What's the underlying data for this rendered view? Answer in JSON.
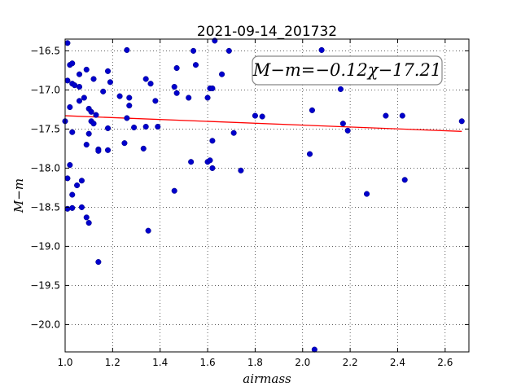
{
  "chart_data": {
    "type": "scatter",
    "title": "2021-09-14_201732",
    "xlabel": "airmass",
    "ylabel": "M−m",
    "annotation": "M−m=−0.12χ−17.21",
    "xlim": [
      1.0,
      2.7
    ],
    "ylim": [
      -20.35,
      -16.35
    ],
    "x_ticks": [
      "1.0",
      "1.2",
      "1.4",
      "1.6",
      "1.8",
      "2.0",
      "2.2",
      "2.4",
      "2.6"
    ],
    "y_ticks": [
      "−16.5",
      "−17.0",
      "−17.5",
      "−18.0",
      "−18.5",
      "−19.0",
      "−19.5",
      "−20.0"
    ],
    "grid": true,
    "colors": {
      "points": "#0000cc",
      "fit": "#ff0000"
    },
    "points": [
      {
        "x": 1.0,
        "y": -17.4
      },
      {
        "x": 1.01,
        "y": -16.4
      },
      {
        "x": 1.01,
        "y": -16.88
      },
      {
        "x": 1.02,
        "y": -16.68
      },
      {
        "x": 1.03,
        "y": -16.66
      },
      {
        "x": 1.03,
        "y": -16.92
      },
      {
        "x": 1.02,
        "y": -17.22
      },
      {
        "x": 1.04,
        "y": -16.94
      },
      {
        "x": 1.06,
        "y": -16.96
      },
      {
        "x": 1.06,
        "y": -16.8
      },
      {
        "x": 1.06,
        "y": -17.14
      },
      {
        "x": 1.08,
        "y": -17.1
      },
      {
        "x": 1.09,
        "y": -16.74
      },
      {
        "x": 1.12,
        "y": -16.86
      },
      {
        "x": 1.03,
        "y": -17.54
      },
      {
        "x": 1.01,
        "y": -18.13
      },
      {
        "x": 1.02,
        "y": -17.96
      },
      {
        "x": 1.03,
        "y": -18.34
      },
      {
        "x": 1.01,
        "y": -18.52
      },
      {
        "x": 1.03,
        "y": -18.51
      },
      {
        "x": 1.05,
        "y": -18.22
      },
      {
        "x": 1.07,
        "y": -18.16
      },
      {
        "x": 1.07,
        "y": -18.5
      },
      {
        "x": 1.09,
        "y": -18.63
      },
      {
        "x": 1.1,
        "y": -18.7
      },
      {
        "x": 1.09,
        "y": -17.7
      },
      {
        "x": 1.1,
        "y": -17.24
      },
      {
        "x": 1.1,
        "y": -17.56
      },
      {
        "x": 1.11,
        "y": -17.28
      },
      {
        "x": 1.11,
        "y": -17.4
      },
      {
        "x": 1.12,
        "y": -17.43
      },
      {
        "x": 1.13,
        "y": -17.32
      },
      {
        "x": 1.14,
        "y": -17.76
      },
      {
        "x": 1.14,
        "y": -17.78
      },
      {
        "x": 1.16,
        "y": -17.02
      },
      {
        "x": 1.18,
        "y": -16.76
      },
      {
        "x": 1.19,
        "y": -16.9
      },
      {
        "x": 1.18,
        "y": -17.49
      },
      {
        "x": 1.18,
        "y": -17.77
      },
      {
        "x": 1.14,
        "y": -19.2
      },
      {
        "x": 1.23,
        "y": -17.08
      },
      {
        "x": 1.26,
        "y": -16.49
      },
      {
        "x": 1.26,
        "y": -17.36
      },
      {
        "x": 1.27,
        "y": -17.1
      },
      {
        "x": 1.27,
        "y": -17.2
      },
      {
        "x": 1.29,
        "y": -17.48
      },
      {
        "x": 1.25,
        "y": -17.68
      },
      {
        "x": 1.33,
        "y": -17.75
      },
      {
        "x": 1.34,
        "y": -16.86
      },
      {
        "x": 1.34,
        "y": -17.47
      },
      {
        "x": 1.36,
        "y": -16.92
      },
      {
        "x": 1.38,
        "y": -17.14
      },
      {
        "x": 1.39,
        "y": -17.47
      },
      {
        "x": 1.35,
        "y": -18.8
      },
      {
        "x": 1.46,
        "y": -16.96
      },
      {
        "x": 1.47,
        "y": -16.72
      },
      {
        "x": 1.47,
        "y": -17.04
      },
      {
        "x": 1.46,
        "y": -18.29
      },
      {
        "x": 1.52,
        "y": -17.1
      },
      {
        "x": 1.53,
        "y": -17.92
      },
      {
        "x": 1.54,
        "y": -16.5
      },
      {
        "x": 1.55,
        "y": -16.68
      },
      {
        "x": 1.6,
        "y": -17.1
      },
      {
        "x": 1.61,
        "y": -16.98
      },
      {
        "x": 1.62,
        "y": -16.98
      },
      {
        "x": 1.6,
        "y": -17.92
      },
      {
        "x": 1.61,
        "y": -17.9
      },
      {
        "x": 1.62,
        "y": -17.65
      },
      {
        "x": 1.62,
        "y": -18.0
      },
      {
        "x": 1.63,
        "y": -16.37
      },
      {
        "x": 1.66,
        "y": -16.8
      },
      {
        "x": 1.69,
        "y": -16.5
      },
      {
        "x": 1.71,
        "y": -17.55
      },
      {
        "x": 1.74,
        "y": -18.03
      },
      {
        "x": 1.8,
        "y": -17.33
      },
      {
        "x": 1.83,
        "y": -17.34
      },
      {
        "x": 2.03,
        "y": -17.82
      },
      {
        "x": 2.04,
        "y": -17.26
      },
      {
        "x": 2.05,
        "y": -20.32
      },
      {
        "x": 2.08,
        "y": -16.49
      },
      {
        "x": 2.16,
        "y": -16.99
      },
      {
        "x": 2.17,
        "y": -17.43
      },
      {
        "x": 2.19,
        "y": -17.52
      },
      {
        "x": 2.27,
        "y": -18.33
      },
      {
        "x": 2.35,
        "y": -17.33
      },
      {
        "x": 2.42,
        "y": -17.33
      },
      {
        "x": 2.43,
        "y": -18.15
      },
      {
        "x": 2.67,
        "y": -17.4
      }
    ],
    "fit_line": {
      "slope": -0.12,
      "intercept": -17.21,
      "x_range": [
        1.0,
        2.67
      ]
    }
  }
}
